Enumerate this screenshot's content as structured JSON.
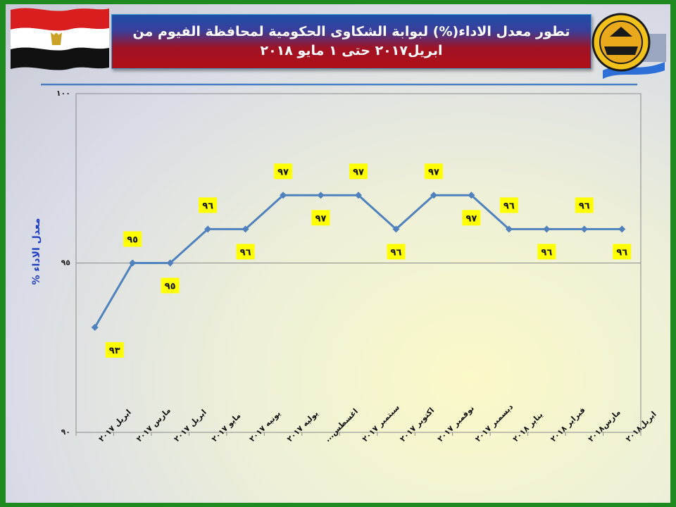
{
  "title": {
    "line1": "تطور معدل الاداء(%) لبوابة الشكاوى الحكومية لمحافظة الفيوم من",
    "line2": "ابريل٢٠١٧ حتى ١ مايو ٢٠١٨"
  },
  "colors": {
    "line": "#4f81bd",
    "label_bg": "#ffff00",
    "axis_label": "#1f3fbf"
  },
  "chart_data": {
    "type": "line",
    "categories": [
      "ابريل ٢٠١٧",
      "مارس ٢٠١٧",
      "ابريل ٢٠١٧",
      "مايو ٢٠١٧",
      "يونيه ٢٠١٧",
      "يوليه ٢٠١٧",
      "اغسطس...",
      "سبتمبر ٢٠١٧",
      "اكتوبر ٢٠١٧",
      "نوفمبر ٢٠١٧",
      "ديسمبر ٢٠١٧",
      "يناير ٢٠١٨",
      "فبراير ٢٠١٨",
      "مارس٢٠١٨",
      "ابريل٢٠١٨"
    ],
    "values": [
      93.1,
      95,
      95,
      96,
      96,
      97,
      97,
      97,
      96,
      97,
      97,
      96,
      96,
      96,
      96
    ],
    "data_labels": [
      "٩٣",
      "٩٥",
      "٩٥",
      "٩٦",
      "٩٦",
      "٩٧",
      "٩٧",
      "٩٧",
      "٩٦",
      "٩٧",
      "٩٧",
      "٩٦",
      "٩٦",
      "٩٦",
      "٩٦"
    ],
    "label_side": [
      "below",
      "above",
      "below",
      "above",
      "below",
      "above",
      "below",
      "above",
      "below",
      "above",
      "below",
      "above",
      "below",
      "above",
      "below"
    ],
    "ylabel": "معدل الاداء %",
    "ylim": [
      90,
      100
    ],
    "yticks": [
      90,
      95,
      100
    ],
    "ytick_labels": [
      "٩٠",
      "٩٥",
      "١٠٠"
    ],
    "grid": true
  }
}
